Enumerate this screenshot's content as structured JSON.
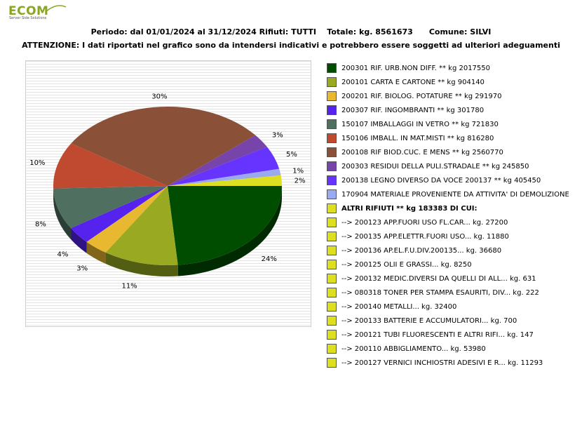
{
  "logo": {
    "brand": "ECOM",
    "tagline": "Server Side Solutions"
  },
  "header": {
    "periodo_label": "Periodo: dal 01/01/2024 al 31/12/2024",
    "rifiuti_label": "Rifiuti: TUTTI",
    "totale_label": "Totale: kg. 8561673",
    "comune_label": "Comune: SILVI",
    "warning": "ATTENZIONE: I dati riportati nel grafico sono da intendersi indicativi e potrebbero essere soggetti ad ulteriori adeguamenti"
  },
  "chart_data": {
    "type": "pie",
    "slices": [
      {
        "legend": "200301 RIF. URB.NON DIFF. ** kg 2017550",
        "value": 2017550,
        "pct_label": "24%",
        "color": "#004d00"
      },
      {
        "legend": "200101 CARTA E CARTONE ** kg 904140",
        "value": 904140,
        "pct_label": "11%",
        "color": "#99aa22"
      },
      {
        "legend": "200201 RIF. BIOLOG. POTATURE ** kg 291970",
        "value": 291970,
        "pct_label": "3%",
        "color": "#e8b830"
      },
      {
        "legend": "200307 RIF. INGOMBRANTI ** kg 301780",
        "value": 301780,
        "pct_label": "4%",
        "color": "#5522ee"
      },
      {
        "legend": "150107 IMBALLAGGI IN VETRO ** kg 721830",
        "value": 721830,
        "pct_label": "8%",
        "color": "#4f7060"
      },
      {
        "legend": "150106 IMBALL. IN MAT.MISTI ** kg 816280",
        "value": 816280,
        "pct_label": "10%",
        "color": "#c04a30"
      },
      {
        "legend": "200108 RIF BIOD.CUC. E MENS ** kg 2560770",
        "value": 2560770,
        "pct_label": "30%",
        "color": "#8b5038"
      },
      {
        "legend": "200303 RESIDUI DELLA PULI.STRADALE ** kg 245850",
        "value": 245850,
        "pct_label": "3%",
        "color": "#7744aa"
      },
      {
        "legend": "200138 LEGNO DIVERSO DA VOCE 200137 ** kg 405450",
        "value": 405450,
        "pct_label": "5%",
        "color": "#6633ff"
      },
      {
        "legend": "170904 MATERIALE PROVENIENTE DA ATTIVITA' DI DEMOLIZIONE",
        "value": 112670,
        "pct_label": "1%",
        "color": "#99aaee"
      },
      {
        "legend": "ALTRI RIFIUTI ** kg 183383 DI CUI:",
        "value": 183383,
        "pct_label": "2%",
        "color": "#dde020"
      }
    ],
    "altri_breakdown": [
      {
        "legend": "-->  200123 APP.FUORI USO FL.CAR... kg. 27200",
        "value": 27200
      },
      {
        "legend": "-->  200135 APP.ELETTR.FUORI USO... kg. 11880",
        "value": 11880
      },
      {
        "legend": "-->  200136 AP.EL.F.U.DIV.200135... kg. 36680",
        "value": 36680
      },
      {
        "legend": "-->  200125 OLII E GRASSI... kg. 8250",
        "value": 8250
      },
      {
        "legend": "-->  200132 MEDIC.DIVERSI DA QUELLI DI ALL... kg. 631",
        "value": 631
      },
      {
        "legend": "-->  080318 TONER PER STAMPA ESAURITI, DIV... kg. 222",
        "value": 222
      },
      {
        "legend": "-->  200140 METALLI... kg. 32400",
        "value": 32400
      },
      {
        "legend": "-->  200133 BATTERIE E ACCUMULATORI... kg. 700",
        "value": 700
      },
      {
        "legend": "-->  200121 TUBI FLUORESCENTI E ALTRI RIFI... kg. 147",
        "value": 147
      },
      {
        "legend": "-->  200110 ABBIGLIAMENTO... kg. 53980",
        "value": 53980
      },
      {
        "legend": "-->  200127 VERNICI INCHIOSTRI ADESIVI E R... kg. 11293",
        "value": 11293
      }
    ],
    "altri_color": "#dde020"
  }
}
